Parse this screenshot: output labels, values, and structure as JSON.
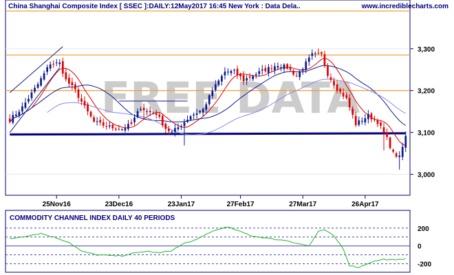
{
  "header": {
    "title": "China Shanghai Composite Index [ SSEC ]:DAILY:12May2017 16:45 New York : Data Dela..",
    "site": "www.incrediblecharts.com"
  },
  "watermark": "FREE DATA",
  "colors": {
    "up_candle": "#0b1a8f",
    "down_candle": "#e00000",
    "ma_red": "#e00000",
    "ma_blue": "#0b1a8f",
    "ma_long": "#8a8ae0",
    "resistance": "#f08a00",
    "support": "#00007a",
    "cci_line": "#1fb81f",
    "cci_level_line": "#4040c0",
    "frame": "#00007a"
  },
  "chart_data": [
    {
      "type": "candlestick",
      "title": "China Shanghai Composite Index [ SSEC ]",
      "ylabel": "",
      "y_ticks": [
        3000,
        3100,
        3200,
        3300
      ],
      "ylim": [
        2950,
        3390
      ],
      "x_ticks": [
        {
          "label": "25Nov16",
          "i": 15
        },
        {
          "label": "23Dec16",
          "i": 35
        },
        {
          "label": "23Jan17",
          "i": 55
        },
        {
          "label": "27Feb17",
          "i": 74
        },
        {
          "label": "27Mar17",
          "i": 94
        },
        {
          "label": "26Apr17",
          "i": 114
        }
      ],
      "n_periods": 128,
      "price_anchors": [
        [
          0,
          3130
        ],
        [
          4,
          3160
        ],
        [
          9,
          3215
        ],
        [
          13,
          3265
        ],
        [
          16,
          3265
        ],
        [
          18,
          3225
        ],
        [
          21,
          3200
        ],
        [
          24,
          3160
        ],
        [
          27,
          3125
        ],
        [
          31,
          3115
        ],
        [
          34,
          3110
        ],
        [
          36,
          3108
        ],
        [
          39,
          3120
        ],
        [
          42,
          3160
        ],
        [
          44,
          3150
        ],
        [
          47,
          3145
        ],
        [
          50,
          3110
        ],
        [
          52,
          3100
        ],
        [
          55,
          3118
        ],
        [
          58,
          3140
        ],
        [
          62,
          3155
        ],
        [
          65,
          3200
        ],
        [
          69,
          3245
        ],
        [
          72,
          3245
        ],
        [
          75,
          3225
        ],
        [
          79,
          3240
        ],
        [
          82,
          3250
        ],
        [
          86,
          3262
        ],
        [
          89,
          3255
        ],
        [
          92,
          3235
        ],
        [
          94,
          3255
        ],
        [
          97,
          3285
        ],
        [
          100,
          3285
        ],
        [
          102,
          3240
        ],
        [
          105,
          3205
        ],
        [
          108,
          3180
        ],
        [
          111,
          3120
        ],
        [
          115,
          3140
        ],
        [
          118,
          3125
        ],
        [
          121,
          3085
        ],
        [
          123,
          3050
        ],
        [
          125,
          3040
        ],
        [
          127,
          3090
        ]
      ],
      "moving_averages": [
        {
          "name": "short",
          "color": "#e00000",
          "period": 21
        },
        {
          "name": "medium",
          "color": "#0b1a8f",
          "period": 63
        },
        {
          "name": "long",
          "color": "#8a8ae0",
          "period": 100
        }
      ],
      "annotations": [
        {
          "type": "hline",
          "value": 3390,
          "color": "#f08a00"
        },
        {
          "type": "hline",
          "value": 3285,
          "color": "#f08a00"
        },
        {
          "type": "hline",
          "value": 3200,
          "color": "#f08a00"
        },
        {
          "type": "line",
          "from": [
            0,
            3095
          ],
          "to": [
            127,
            3098
          ],
          "color": "#00007a",
          "label": "support"
        },
        {
          "type": "line",
          "from": [
            0,
            3195
          ],
          "to": [
            17,
            3305
          ],
          "color": "#0b1a8f",
          "label": "channel-upper"
        },
        {
          "type": "line",
          "from": [
            0,
            3100
          ],
          "to": [
            16,
            3255
          ],
          "color": "#0b1a8f",
          "label": "channel-lower"
        },
        {
          "type": "line",
          "from": [
            35,
            3175
          ],
          "to": [
            57,
            3175
          ],
          "color": "#0b1a8f",
          "label": "resistance-short"
        }
      ]
    },
    {
      "type": "line",
      "title": "COMMODITY CHANNEL INDEX DAILY 40 PERIODS",
      "y_ticks": [
        200,
        0,
        -200
      ],
      "ylim": [
        -280,
        260
      ],
      "levels": [
        200,
        100,
        0,
        -100,
        -200
      ],
      "n_periods": 128,
      "cci_anchors": [
        [
          0,
          80
        ],
        [
          5,
          110
        ],
        [
          10,
          140
        ],
        [
          15,
          90
        ],
        [
          19,
          40
        ],
        [
          23,
          -60
        ],
        [
          28,
          -100
        ],
        [
          33,
          -110
        ],
        [
          36,
          -110
        ],
        [
          40,
          -80
        ],
        [
          44,
          -60
        ],
        [
          48,
          -80
        ],
        [
          52,
          -50
        ],
        [
          56,
          30
        ],
        [
          60,
          70
        ],
        [
          64,
          150
        ],
        [
          68,
          200
        ],
        [
          70,
          210
        ],
        [
          74,
          160
        ],
        [
          78,
          110
        ],
        [
          82,
          90
        ],
        [
          86,
          70
        ],
        [
          89,
          60
        ],
        [
          92,
          30
        ],
        [
          96,
          0
        ],
        [
          99,
          160
        ],
        [
          101,
          180
        ],
        [
          104,
          110
        ],
        [
          107,
          -30
        ],
        [
          109,
          -220
        ],
        [
          112,
          -240
        ],
        [
          116,
          -180
        ],
        [
          120,
          -150
        ],
        [
          124,
          -160
        ],
        [
          127,
          -140
        ]
      ]
    }
  ]
}
